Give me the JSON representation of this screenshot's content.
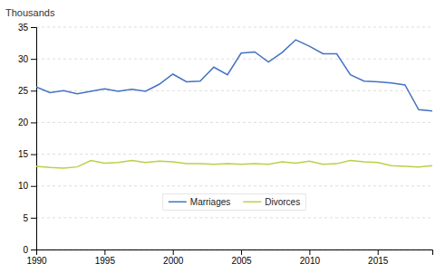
{
  "chart_data": {
    "type": "line",
    "ylabel": "Thousands",
    "x": [
      1990,
      1991,
      1992,
      1993,
      1994,
      1995,
      1996,
      1997,
      1998,
      1999,
      2000,
      2001,
      2002,
      2003,
      2004,
      2005,
      2006,
      2007,
      2008,
      2009,
      2010,
      2011,
      2012,
      2013,
      2014,
      2015,
      2016,
      2017,
      2018,
      2019
    ],
    "series": [
      {
        "name": "Marriages",
        "color": "#4472C4",
        "values": [
          25.6,
          24.7,
          25.0,
          24.5,
          24.9,
          25.3,
          24.9,
          25.2,
          24.9,
          26.0,
          27.6,
          26.4,
          26.5,
          28.7,
          27.5,
          30.9,
          31.1,
          29.5,
          31.0,
          33.0,
          32.0,
          30.8,
          30.8,
          27.5,
          26.5,
          26.4,
          26.2,
          25.9,
          22.0,
          21.8
        ]
      },
      {
        "name": "Divorces",
        "color": "#BFCE45",
        "values": [
          13.1,
          12.9,
          12.8,
          13.0,
          14.0,
          13.6,
          13.7,
          14.0,
          13.7,
          13.9,
          13.8,
          13.5,
          13.5,
          13.4,
          13.5,
          13.4,
          13.5,
          13.4,
          13.8,
          13.6,
          13.9,
          13.4,
          13.5,
          14.0,
          13.8,
          13.7,
          13.2,
          13.1,
          13.0,
          13.2
        ]
      }
    ],
    "xlim": [
      1990,
      2019
    ],
    "xticks": [
      1990,
      1995,
      2000,
      2005,
      2010,
      2015
    ],
    "ylim": [
      0,
      35
    ],
    "yticks": [
      0,
      5,
      10,
      15,
      20,
      25,
      30,
      35
    ],
    "grid": true,
    "legend": "lower center"
  }
}
